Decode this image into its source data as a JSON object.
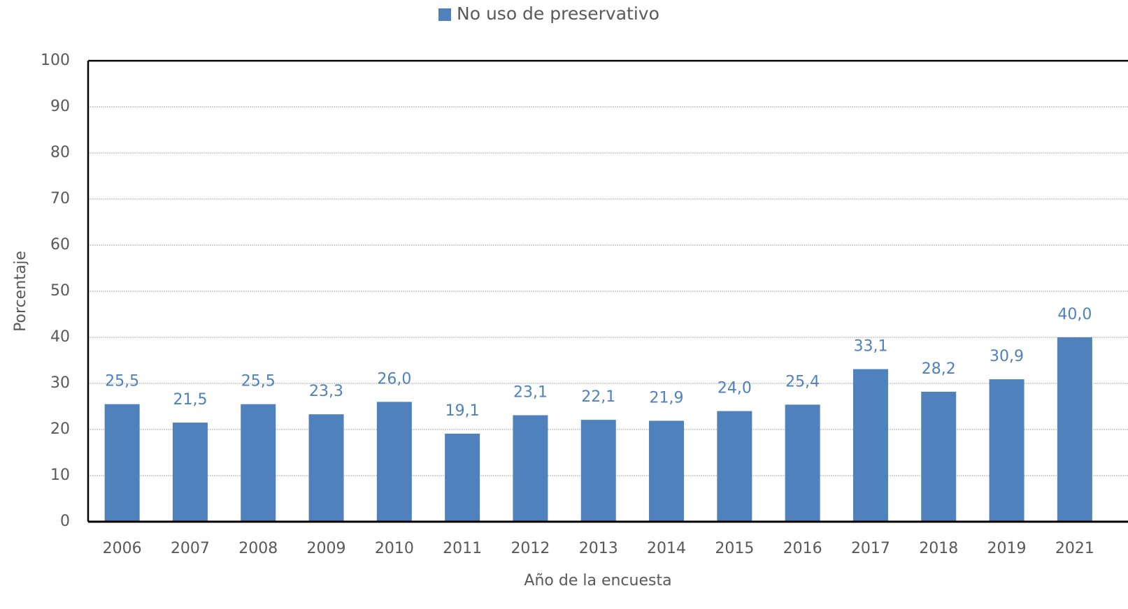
{
  "chart_data": {
    "type": "bar",
    "x_label": "Año de la encuesta",
    "y_label": "Porcentaje",
    "categories": [
      "2006",
      "2007",
      "2008",
      "2009",
      "2010",
      "2011",
      "2012",
      "2013",
      "2014",
      "2015",
      "2016",
      "2017",
      "2018",
      "2019",
      "2021"
    ],
    "series": [
      {
        "name": "No uso de preservativo",
        "color": "#4f81bd",
        "values": [
          25.5,
          21.5,
          25.5,
          23.3,
          26.0,
          19.1,
          23.1,
          22.1,
          21.9,
          24.0,
          25.4,
          33.1,
          28.2,
          30.9,
          40.0
        ],
        "value_labels": [
          "25,5",
          "21,5",
          "25,5",
          "23,3",
          "26,0",
          "19,1",
          "23,1",
          "22,1",
          "21,9",
          "24,0",
          "25,4",
          "33,1",
          "28,2",
          "30,9",
          "40,0"
        ]
      }
    ],
    "ylim": [
      0,
      100
    ],
    "yticks": [
      0,
      10,
      20,
      30,
      40,
      50,
      60,
      70,
      80,
      90,
      100
    ],
    "grid": true,
    "legend": "top"
  }
}
